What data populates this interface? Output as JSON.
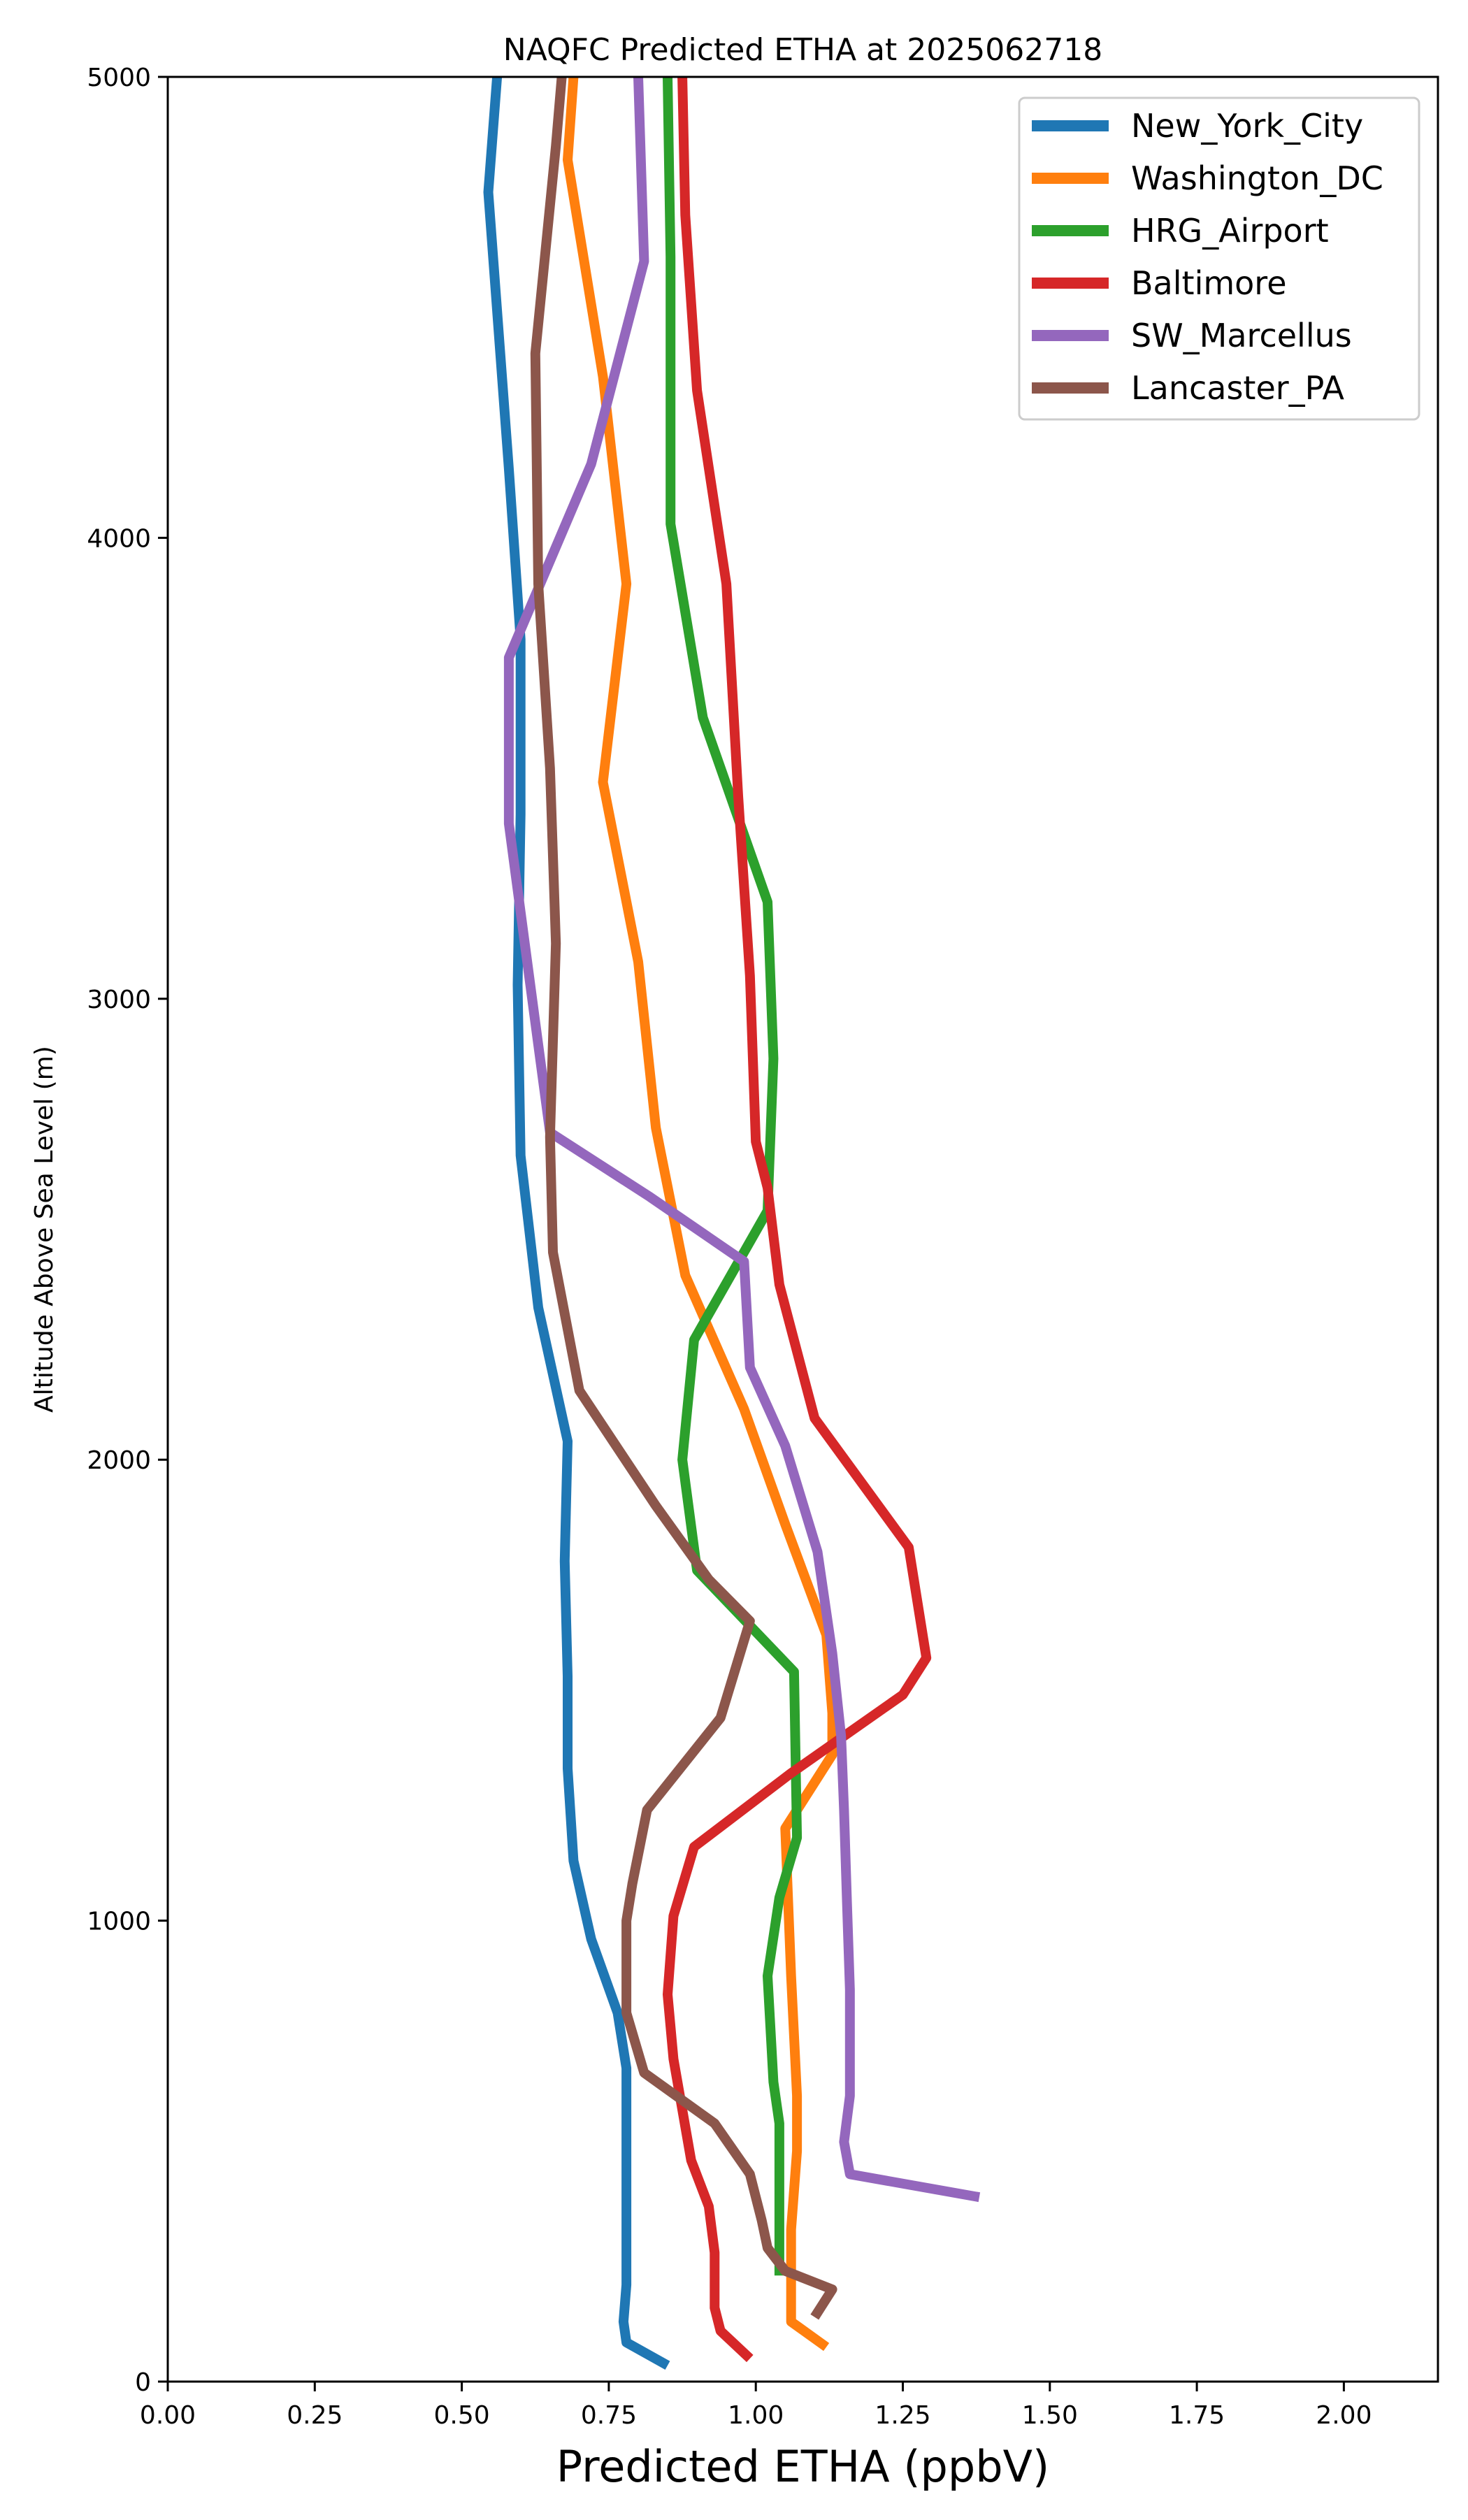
{
  "chart_data": {
    "type": "line",
    "title": "NAQFC Predicted ETHA at 2025062718",
    "xlabel": "Predicted ETHA (ppbV)",
    "ylabel": "Altitude Above Sea Level (m)",
    "xlim": [
      0,
      2.16
    ],
    "ylim": [
      0,
      5000
    ],
    "x_ticks": [
      "0.00",
      "0.25",
      "0.50",
      "0.75",
      "1.00",
      "1.25",
      "1.50",
      "1.75",
      "2.00"
    ],
    "x_tick_values": [
      0,
      0.25,
      0.5,
      0.75,
      1.0,
      1.25,
      1.5,
      1.75,
      2.0
    ],
    "y_ticks": [
      "0",
      "1000",
      "2000",
      "3000",
      "4000",
      "5000"
    ],
    "y_tick_values": [
      0,
      1000,
      2000,
      3000,
      4000,
      5000
    ],
    "grid": false,
    "legend_position": "top-right",
    "series": [
      {
        "name": "New_York_City",
        "color": "#1f77b4",
        "points": [
          [
            0.85,
            35
          ],
          [
            0.78,
            85
          ],
          [
            0.775,
            130
          ],
          [
            0.78,
            210
          ],
          [
            0.78,
            380
          ],
          [
            0.78,
            680
          ],
          [
            0.765,
            800
          ],
          [
            0.72,
            960
          ],
          [
            0.69,
            1130
          ],
          [
            0.68,
            1330
          ],
          [
            0.68,
            1530
          ],
          [
            0.675,
            1780
          ],
          [
            0.68,
            2040
          ],
          [
            0.63,
            2330
          ],
          [
            0.6,
            2660
          ],
          [
            0.595,
            3030
          ],
          [
            0.6,
            3400
          ],
          [
            0.6,
            3780
          ],
          [
            0.58,
            4150
          ],
          [
            0.545,
            4750
          ],
          [
            0.56,
            5000
          ]
        ]
      },
      {
        "name": "Washington_DC",
        "color": "#ff7f0e",
        "points": [
          [
            1.12,
            75
          ],
          [
            1.06,
            130
          ],
          [
            1.06,
            330
          ],
          [
            1.07,
            500
          ],
          [
            1.07,
            620
          ],
          [
            1.06,
            880
          ],
          [
            1.05,
            1200
          ],
          [
            1.13,
            1360
          ],
          [
            1.13,
            1450
          ],
          [
            1.12,
            1620
          ],
          [
            1.05,
            1860
          ],
          [
            0.98,
            2110
          ],
          [
            0.88,
            2400
          ],
          [
            0.83,
            2720
          ],
          [
            0.8,
            3080
          ],
          [
            0.74,
            3470
          ],
          [
            0.78,
            3900
          ],
          [
            0.74,
            4350
          ],
          [
            0.68,
            4820
          ],
          [
            0.69,
            5000
          ]
        ]
      },
      {
        "name": "HRG_Airport",
        "color": "#2ca02c",
        "points": [
          [
            1.04,
            230
          ],
          [
            1.04,
            560
          ],
          [
            1.03,
            650
          ],
          [
            1.02,
            880
          ],
          [
            1.04,
            1050
          ],
          [
            1.07,
            1180
          ],
          [
            1.065,
            1540
          ],
          [
            0.9,
            1760
          ],
          [
            0.875,
            2000
          ],
          [
            0.895,
            2260
          ],
          [
            1.02,
            2540
          ],
          [
            1.03,
            2870
          ],
          [
            1.02,
            3210
          ],
          [
            0.91,
            3610
          ],
          [
            0.855,
            4030
          ],
          [
            0.855,
            4610
          ],
          [
            0.85,
            5000
          ]
        ]
      },
      {
        "name": "Baltimore",
        "color": "#d62728",
        "points": [
          [
            0.99,
            50
          ],
          [
            0.94,
            110
          ],
          [
            0.93,
            160
          ],
          [
            0.93,
            280
          ],
          [
            0.92,
            380
          ],
          [
            0.89,
            480
          ],
          [
            0.86,
            700
          ],
          [
            0.85,
            840
          ],
          [
            0.86,
            1010
          ],
          [
            0.895,
            1160
          ],
          [
            1.06,
            1320
          ],
          [
            1.25,
            1490
          ],
          [
            1.29,
            1570
          ],
          [
            1.26,
            1810
          ],
          [
            1.1,
            2090
          ],
          [
            1.04,
            2380
          ],
          [
            1.02,
            2590
          ],
          [
            1.0,
            2690
          ],
          [
            0.99,
            3050
          ],
          [
            0.97,
            3440
          ],
          [
            0.95,
            3900
          ],
          [
            0.9,
            4320
          ],
          [
            0.88,
            4700
          ],
          [
            0.875,
            5000
          ]
        ]
      },
      {
        "name": "SW_Marcellus",
        "color": "#9467bd",
        "points": [
          [
            1.38,
            400
          ],
          [
            1.16,
            450
          ],
          [
            1.15,
            520
          ],
          [
            1.16,
            620
          ],
          [
            1.16,
            850
          ],
          [
            1.155,
            1040
          ],
          [
            1.15,
            1240
          ],
          [
            1.145,
            1400
          ],
          [
            1.13,
            1580
          ],
          [
            1.105,
            1800
          ],
          [
            1.05,
            2030
          ],
          [
            0.99,
            2200
          ],
          [
            0.98,
            2430
          ],
          [
            0.82,
            2570
          ],
          [
            0.65,
            2710
          ],
          [
            0.63,
            2900
          ],
          [
            0.58,
            3380
          ],
          [
            0.58,
            3740
          ],
          [
            0.72,
            4160
          ],
          [
            0.81,
            4600
          ],
          [
            0.8,
            5000
          ]
        ]
      },
      {
        "name": "Lancaster_PA",
        "color": "#8c564b",
        "points": [
          [
            1.1,
            140
          ],
          [
            1.13,
            200
          ],
          [
            1.05,
            240
          ],
          [
            1.02,
            290
          ],
          [
            1.01,
            350
          ],
          [
            0.99,
            450
          ],
          [
            0.93,
            560
          ],
          [
            0.81,
            670
          ],
          [
            0.78,
            800
          ],
          [
            0.78,
            1000
          ],
          [
            0.79,
            1080
          ],
          [
            0.815,
            1240
          ],
          [
            0.94,
            1440
          ],
          [
            0.99,
            1650
          ],
          [
            0.92,
            1740
          ],
          [
            0.83,
            1900
          ],
          [
            0.7,
            2150
          ],
          [
            0.655,
            2450
          ],
          [
            0.65,
            2700
          ],
          [
            0.66,
            3120
          ],
          [
            0.65,
            3500
          ],
          [
            0.63,
            3900
          ],
          [
            0.625,
            4400
          ],
          [
            0.66,
            4850
          ],
          [
            0.67,
            5000
          ]
        ]
      }
    ]
  }
}
